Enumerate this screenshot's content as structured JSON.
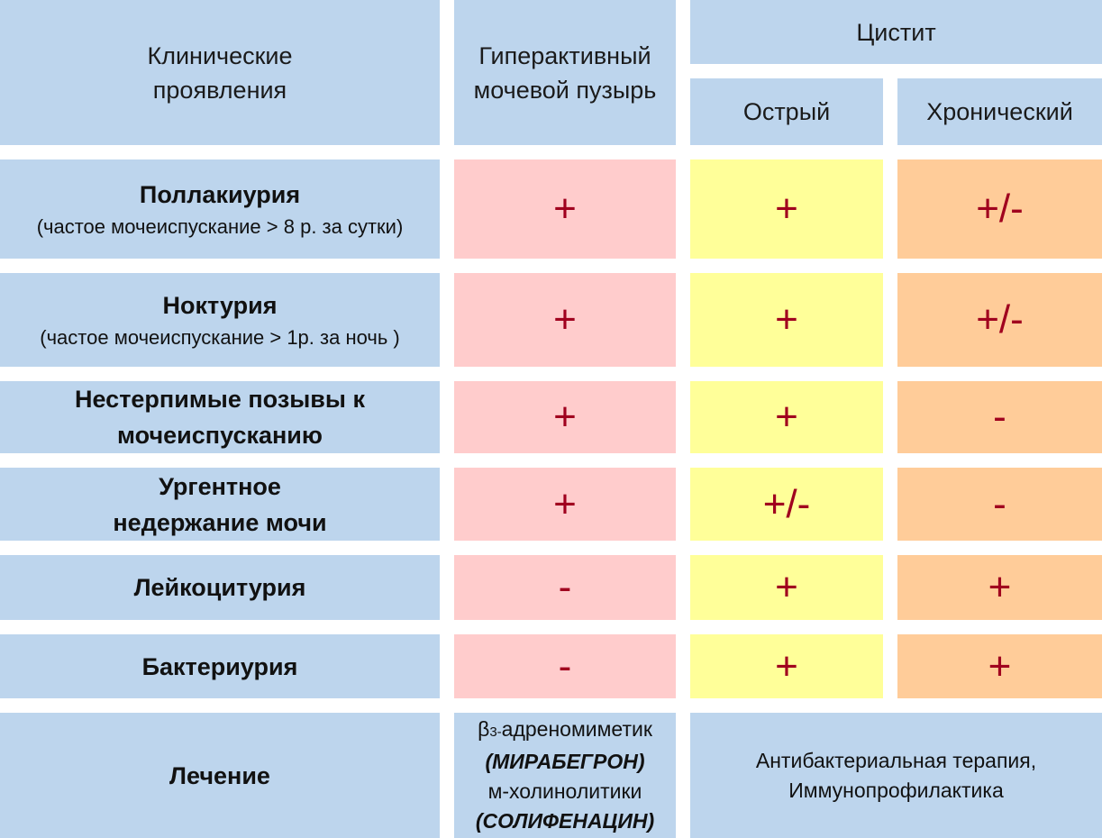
{
  "header": {
    "clinical": "Клинические проявления",
    "overactive": "Гиперактивный мочевой пузырь",
    "cystitis": "Цистит",
    "acute": "Острый",
    "chronic": "Хронический"
  },
  "rows": [
    {
      "title": "Поллакиурия",
      "sub": "(частое мочеиспускание > 8 р. за сутки)",
      "oab": "+",
      "acute": "+",
      "chronic": "+/-"
    },
    {
      "title": "Ноктурия",
      "sub": "(частое мочеиспускание > 1р. за ночь )",
      "oab": "+",
      "acute": "+",
      "chronic": "+/-"
    },
    {
      "title": "Нестерпимые позывы к мочеиспусканию",
      "sub": "",
      "oab": "+",
      "acute": "+",
      "chronic": "-"
    },
    {
      "title": "Ургентное недержание мочи",
      "sub": "",
      "oab": "+",
      "acute": "+/-",
      "chronic": "-"
    },
    {
      "title": "Лейкоцитурия",
      "sub": "",
      "oab": "-",
      "acute": "+",
      "chronic": "+"
    },
    {
      "title": "Бактериурия",
      "sub": "",
      "oab": "-",
      "acute": "+",
      "chronic": "+"
    }
  ],
  "treatment": {
    "title": "Лечение",
    "oab_line1_beta": "β",
    "oab_line1_sub": "3-",
    "oab_line1_rest": "адреномиметик",
    "oab_line2": "(МИРАБЕГРОН)",
    "oab_line3": "м-холинолитики",
    "oab_line4": "(СОЛИФЕНАЦИН)",
    "cystitis_line1": "Антибактериальная терапия,",
    "cystitis_line2": "Иммунопрофилактика"
  }
}
